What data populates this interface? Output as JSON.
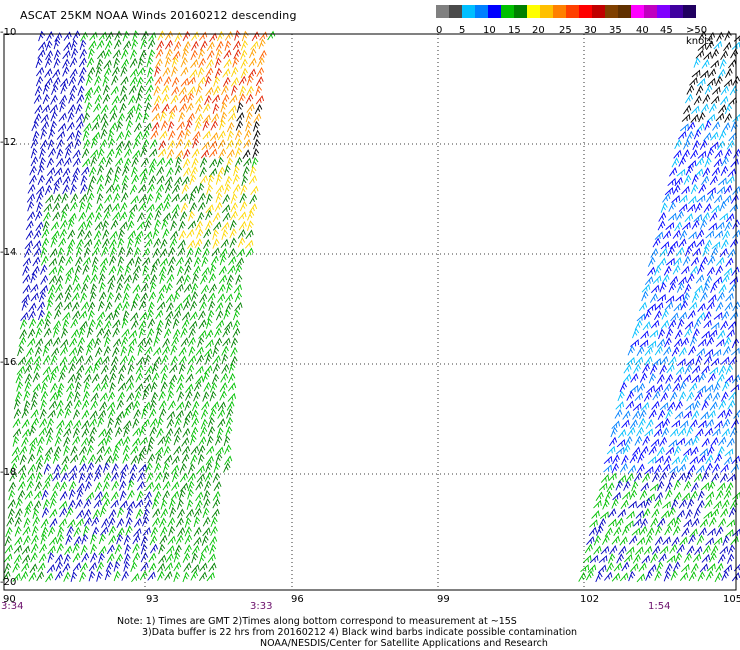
{
  "title": "ASCAT 25KM NOAA Winds 20160212 descending",
  "colorbar": {
    "labels": [
      "0",
      "5",
      "10",
      "15",
      "20",
      "25",
      "30",
      "35",
      "40",
      "45",
      ">50 knots"
    ],
    "colors": [
      "#808080",
      "#4a4a4a",
      "#00bfff",
      "#0080ff",
      "#0000ff",
      "#00c000",
      "#008000",
      "#ffff00",
      "#ffc000",
      "#ff8000",
      "#ff4000",
      "#ff0000",
      "#c00000",
      "#804000",
      "#603000",
      "#ff00ff",
      "#c000c0",
      "#8000ff",
      "#4000a0",
      "#200060"
    ]
  },
  "axes": {
    "y_labels": [
      "-10",
      "-12",
      "-14",
      "-16",
      "-18",
      "-20"
    ],
    "x_labels": [
      "90",
      "93",
      "96",
      "99",
      "102",
      "105"
    ],
    "time_labels": [
      "3:34",
      "3:33",
      "1:54"
    ]
  },
  "notes": {
    "line1": "Note: 1) Times are GMT 2)Times along bottom correspond to measurement at ~15S",
    "line2": "3)Data buffer is 22 hrs from 20160212 4) Black wind barbs indicate possible contamination",
    "line3": "NOAA/NESDIS/Center for Satellite Applications and Research"
  }
}
